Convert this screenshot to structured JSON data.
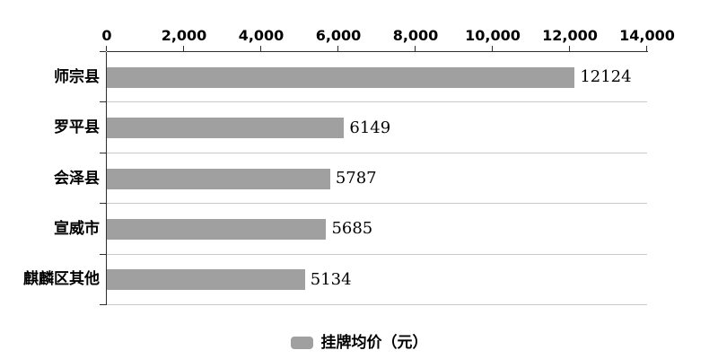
{
  "chart_data": {
    "type": "bar",
    "orientation": "horizontal",
    "title": "",
    "categories": [
      "师宗县",
      "罗平县",
      "会泽县",
      "宣威市",
      "麒麟区其他"
    ],
    "values": [
      12124,
      6149,
      5787,
      5685,
      5134
    ],
    "value_labels": [
      "12124",
      "6149",
      "5787",
      "5685",
      "5134"
    ],
    "series": [
      {
        "name": "挂牌均价（元）",
        "values": [
          12124,
          6149,
          5787,
          5685,
          5134
        ]
      }
    ],
    "xlim": [
      0,
      14000
    ],
    "x_ticks": [
      0,
      2000,
      4000,
      6000,
      8000,
      10000,
      12000,
      14000
    ],
    "x_tick_labels": [
      "0",
      "2,000",
      "4,000",
      "6,000",
      "8,000",
      "10,000",
      "12,000",
      "14,000"
    ],
    "xlabel": "",
    "ylabel": "",
    "legend": {
      "label": "挂牌均价（元）",
      "position": "bottom"
    },
    "grid": "horizontal-band-separators",
    "axis_position": "x-axis-top, y-axis-left",
    "colors": {
      "bar": "#a0a0a0",
      "separator": "#c9c9c9",
      "axis": "#2e2e2e",
      "text": "#000000",
      "background": "#ffffff"
    }
  }
}
